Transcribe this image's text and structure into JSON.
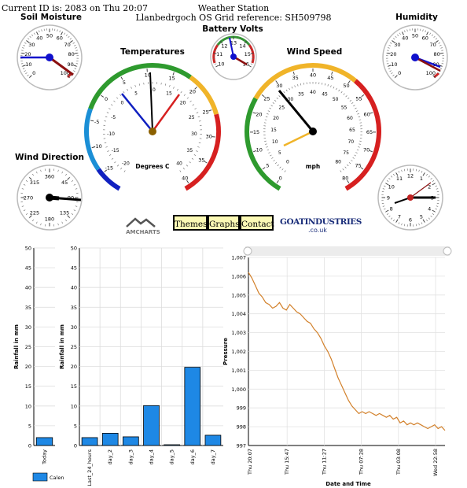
{
  "header": {
    "current_id": "Current ID is: 2083 on Thu 20:07",
    "station_title": "Weather Station",
    "grid_ref": "Llanbedrgoch OS Grid reference: SH509798"
  },
  "gauges": {
    "soil_moisture": {
      "title": "Soil Moisture",
      "ticks": [
        "0",
        "10",
        "20",
        "30",
        "40",
        "50",
        "60",
        "70",
        "80",
        "90",
        "100"
      ],
      "value": 100
    },
    "battery": {
      "title": "Battery Volts",
      "ticks": [
        "10",
        "11",
        "12",
        "13",
        "14",
        "15",
        "16"
      ],
      "value": 15.6
    },
    "temperatures": {
      "title": "Temperatures",
      "outer_ticks": [
        "-15",
        "-10",
        "-5",
        "0",
        "5",
        "10",
        "15",
        "20",
        "25",
        "30",
        "35",
        "40"
      ],
      "inner_ticks": [
        "-20",
        "-15",
        "-10",
        "-5",
        "0",
        "5",
        "10",
        "15",
        "20",
        "25",
        "30",
        "35",
        "40"
      ],
      "unit": "Degrees C"
    },
    "wind_speed": {
      "title": "Wind Speed",
      "outer_ticks": [
        "0",
        "5",
        "10",
        "15",
        "20",
        "25",
        "30",
        "35",
        "40",
        "45",
        "50",
        "55",
        "60",
        "65",
        "70",
        "75",
        "80"
      ],
      "inner_ticks": [
        "0",
        "5",
        "10",
        "15",
        "20",
        "25",
        "30",
        "35",
        "40",
        "45",
        "50",
        "55",
        "60",
        "65",
        "70",
        "75",
        "80"
      ],
      "unit": "mph"
    },
    "humidity": {
      "title": "Humidity",
      "ticks": [
        "0",
        "10",
        "20",
        "30",
        "40",
        "50",
        "60",
        "70",
        "80",
        "90",
        "100"
      ],
      "value": 100
    },
    "wind_direction": {
      "title": "Wind Direction",
      "ticks": [
        "360",
        "45",
        "90",
        "135",
        "180",
        "225",
        "270",
        "315"
      ],
      "value": 95
    },
    "clock": {
      "ticks": [
        "12",
        "1",
        "2",
        "3",
        "4",
        "5",
        "6",
        "7",
        "8",
        "9",
        "10",
        "11"
      ],
      "time": "20:07"
    }
  },
  "nav": {
    "amcharts_label": "AMCHARTS",
    "themes": "Themes",
    "graphs": "Graphs",
    "contact": "Contact",
    "goat_brand": "GOATINDUSTRIES",
    "goat_domain": ".co.uk"
  },
  "colors": {
    "bar": "#1e88e5",
    "pressure_line": "#d2802a",
    "gauge_green": "#2e9a2e",
    "gauge_yellow": "#f0b429",
    "gauge_red": "#d62020",
    "gauge_blue": "#1b8fd6"
  },
  "chart_data": [
    {
      "type": "bar",
      "categories": [
        "Today"
      ],
      "values": [
        2
      ],
      "ylabel": "Rainfall in mm",
      "ylim": [
        0,
        50
      ],
      "yticks": [
        "0",
        "5",
        "10",
        "15",
        "20",
        "25",
        "30",
        "35",
        "40",
        "45",
        "50"
      ],
      "legend": [
        "Calen"
      ]
    },
    {
      "type": "bar",
      "categories": [
        "Last_24_hours",
        "day_2",
        "day_3",
        "day_4",
        "day_5",
        "day_6",
        "day_7"
      ],
      "values": [
        2,
        3.1,
        2.2,
        10.1,
        0.2,
        19.8,
        2.6
      ],
      "ylabel": "Rainfall in mm",
      "ylim": [
        0,
        50
      ],
      "yticks": [
        "0",
        "5",
        "10",
        "15",
        "20",
        "25",
        "30",
        "35",
        "40",
        "45",
        "50"
      ]
    },
    {
      "type": "line",
      "xlabel": "Date and Time",
      "ylabel": "Pressure",
      "ylim": [
        997,
        1007
      ],
      "yticks": [
        "997",
        "998",
        "999",
        "1,000",
        "1,001",
        "1,002",
        "1,003",
        "1,004",
        "1,005",
        "1,006",
        "1,007"
      ],
      "xticks": [
        "Thu 20:07",
        "Thu 15:47",
        "Thu 11:27",
        "Thu 07:28",
        "Thu 03:08",
        "Wed 22:58"
      ],
      "values": [
        1006.2,
        1005.9,
        1005.5,
        1005.1,
        1004.9,
        1004.6,
        1004.5,
        1004.3,
        1004.4,
        1004.6,
        1004.3,
        1004.2,
        1004.5,
        1004.3,
        1004.1,
        1004.0,
        1003.8,
        1003.6,
        1003.5,
        1003.2,
        1003.0,
        1002.7,
        1002.3,
        1002.0,
        1001.6,
        1001.1,
        1000.6,
        1000.2,
        999.8,
        999.4,
        999.1,
        998.9,
        998.7,
        998.8,
        998.7,
        998.8,
        998.7,
        998.6,
        998.7,
        998.6,
        998.5,
        998.6,
        998.4,
        998.5,
        998.2,
        998.3,
        998.1,
        998.2,
        998.1,
        998.2,
        998.1,
        998.0,
        997.9,
        998.0,
        998.1,
        997.9,
        998.0,
        997.8
      ]
    }
  ]
}
